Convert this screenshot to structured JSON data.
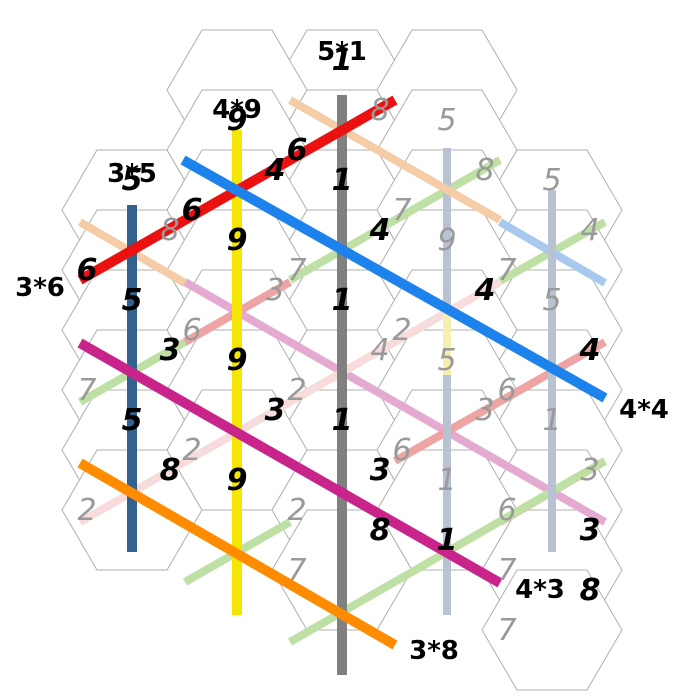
{
  "puzzle": {
    "cells": [
      {
        "id": "r0c0",
        "row": 0,
        "col": 0,
        "pieces": [
          {
            "value": "1",
            "strong": true,
            "color": "#000000"
          }
        ]
      },
      {
        "id": "r1c0",
        "row": 1,
        "col": 0,
        "pieces": [
          {
            "value": "9",
            "strong": true,
            "color": "#000000"
          }
        ]
      },
      {
        "id": "r1c1",
        "row": 1,
        "col": 1,
        "pieces": [
          {
            "value": "6",
            "strong": true,
            "color": "#000000"
          },
          {
            "value": "8",
            "strong": false,
            "color": "#9a9a9a"
          }
        ]
      },
      {
        "id": "r1c2",
        "row": 1,
        "col": 2,
        "pieces": [
          {
            "value": "5",
            "strong": false,
            "color": "#9a9a9a"
          }
        ]
      },
      {
        "id": "r2c0",
        "row": 2,
        "col": 0,
        "pieces": [
          {
            "value": "5",
            "strong": true,
            "color": "#000000"
          }
        ]
      },
      {
        "id": "r2c1",
        "row": 2,
        "col": 1,
        "pieces": [
          {
            "value": "6",
            "strong": true,
            "color": "#000000"
          },
          {
            "value": "4",
            "strong": true,
            "color": "#000000"
          }
        ]
      },
      {
        "id": "r2c2",
        "row": 2,
        "col": 2,
        "pieces": [
          {
            "value": "1",
            "strong": true,
            "color": "#000000"
          }
        ]
      },
      {
        "id": "r2c3",
        "row": 2,
        "col": 3,
        "pieces": [
          {
            "value": "7",
            "strong": false,
            "color": "#9a9a9a"
          },
          {
            "value": "8",
            "strong": false,
            "color": "#9a9a9a"
          }
        ]
      },
      {
        "id": "r2c4",
        "row": 2,
        "col": 4,
        "pieces": [
          {
            "value": "5",
            "strong": false,
            "color": "#9a9a9a"
          }
        ]
      },
      {
        "id": "r3c0",
        "row": 3,
        "col": 0,
        "pieces": [
          {
            "value": "6",
            "strong": true,
            "color": "#000000"
          },
          {
            "value": "8",
            "strong": false,
            "color": "#9a9a9a"
          }
        ]
      },
      {
        "id": "r3c1",
        "row": 3,
        "col": 1,
        "pieces": [
          {
            "value": "9",
            "strong": true,
            "color": "#000000"
          }
        ]
      },
      {
        "id": "r3c2",
        "row": 3,
        "col": 2,
        "pieces": [
          {
            "value": "7",
            "strong": false,
            "color": "#9a9a9a"
          },
          {
            "value": "4",
            "strong": true,
            "color": "#000000"
          }
        ]
      },
      {
        "id": "r3c3",
        "row": 3,
        "col": 3,
        "pieces": [
          {
            "value": "9",
            "strong": false,
            "color": "#9a9a9a"
          }
        ]
      },
      {
        "id": "r3c4",
        "row": 3,
        "col": 4,
        "pieces": [
          {
            "value": "7",
            "strong": false,
            "color": "#9a9a9a"
          },
          {
            "value": "4",
            "strong": false,
            "color": "#9a9a9a"
          }
        ]
      },
      {
        "id": "r4c0",
        "row": 4,
        "col": 0,
        "pieces": [
          {
            "value": "5",
            "strong": true,
            "color": "#000000"
          }
        ]
      },
      {
        "id": "r4c1",
        "row": 4,
        "col": 1,
        "pieces": [
          {
            "value": "6",
            "strong": false,
            "color": "#9a9a9a"
          },
          {
            "value": "3",
            "strong": false,
            "color": "#9a9a9a"
          }
        ]
      },
      {
        "id": "r4c2",
        "row": 4,
        "col": 2,
        "pieces": [
          {
            "value": "1",
            "strong": true,
            "color": "#000000"
          }
        ]
      },
      {
        "id": "r4c3",
        "row": 4,
        "col": 3,
        "pieces": [
          {
            "value": "2",
            "strong": false,
            "color": "#9a9a9a"
          },
          {
            "value": "4",
            "strong": true,
            "color": "#000000"
          }
        ]
      },
      {
        "id": "r4c4",
        "row": 4,
        "col": 4,
        "pieces": [
          {
            "value": "5",
            "strong": false,
            "color": "#9a9a9a"
          }
        ]
      },
      {
        "id": "r5c0",
        "row": 5,
        "col": 0,
        "pieces": [
          {
            "value": "7",
            "strong": false,
            "color": "#9a9a9a"
          },
          {
            "value": "3",
            "strong": true,
            "color": "#000000"
          }
        ]
      },
      {
        "id": "r5c1",
        "row": 5,
        "col": 1,
        "pieces": [
          {
            "value": "9",
            "strong": true,
            "color": "#000000"
          }
        ]
      },
      {
        "id": "r5c2",
        "row": 5,
        "col": 2,
        "pieces": [
          {
            "value": "2",
            "strong": false,
            "color": "#9a9a9a"
          },
          {
            "value": "4",
            "strong": false,
            "color": "#9a9a9a"
          }
        ]
      },
      {
        "id": "r5c3",
        "row": 5,
        "col": 3,
        "pieces": [
          {
            "value": "5",
            "strong": false,
            "color": "#9a9a9a"
          }
        ]
      },
      {
        "id": "r5c4",
        "row": 5,
        "col": 4,
        "pieces": [
          {
            "value": "6",
            "strong": false,
            "color": "#9a9a9a"
          },
          {
            "value": "4",
            "strong": true,
            "color": "#000000"
          }
        ]
      },
      {
        "id": "r6c0",
        "row": 6,
        "col": 0,
        "pieces": [
          {
            "value": "5",
            "strong": true,
            "color": "#000000"
          }
        ]
      },
      {
        "id": "r6c1",
        "row": 6,
        "col": 1,
        "pieces": [
          {
            "value": "2",
            "strong": false,
            "color": "#9a9a9a"
          },
          {
            "value": "3",
            "strong": true,
            "color": "#000000"
          }
        ]
      },
      {
        "id": "r6c2",
        "row": 6,
        "col": 2,
        "pieces": [
          {
            "value": "1",
            "strong": true,
            "color": "#000000"
          }
        ]
      },
      {
        "id": "r6c3",
        "row": 6,
        "col": 3,
        "pieces": [
          {
            "value": "6",
            "strong": false,
            "color": "#9a9a9a"
          },
          {
            "value": "3",
            "strong": false,
            "color": "#9a9a9a"
          }
        ]
      },
      {
        "id": "r6c4",
        "row": 6,
        "col": 4,
        "pieces": [
          {
            "value": "1",
            "strong": false,
            "color": "#9a9a9a"
          }
        ]
      },
      {
        "id": "r7c0",
        "row": 7,
        "col": 0,
        "pieces": [
          {
            "value": "2",
            "strong": false,
            "color": "#9a9a9a"
          },
          {
            "value": "8",
            "strong": true,
            "color": "#000000"
          }
        ]
      },
      {
        "id": "r7c1",
        "row": 7,
        "col": 1,
        "pieces": [
          {
            "value": "9",
            "strong": true,
            "color": "#000000"
          }
        ]
      },
      {
        "id": "r7c2",
        "row": 7,
        "col": 2,
        "pieces": [
          {
            "value": "2",
            "strong": false,
            "color": "#9a9a9a"
          },
          {
            "value": "3",
            "strong": true,
            "color": "#000000"
          }
        ]
      },
      {
        "id": "r7c3",
        "row": 7,
        "col": 3,
        "pieces": [
          {
            "value": "1",
            "strong": false,
            "color": "#9a9a9a"
          }
        ]
      },
      {
        "id": "r7c4",
        "row": 7,
        "col": 4,
        "pieces": [
          {
            "value": "6",
            "strong": false,
            "color": "#9a9a9a"
          },
          {
            "value": "3",
            "strong": false,
            "color": "#9a9a9a"
          }
        ]
      },
      {
        "id": "r8c1",
        "row": 8,
        "col": 1,
        "pieces": [
          {
            "value": "7",
            "strong": false,
            "color": "#9a9a9a"
          },
          {
            "value": "8",
            "strong": true,
            "color": "#000000"
          }
        ]
      },
      {
        "id": "r8c2",
        "row": 8,
        "col": 2,
        "pieces": [
          {
            "value": "1",
            "strong": true,
            "color": "#000000"
          }
        ]
      },
      {
        "id": "r8c3",
        "row": 8,
        "col": 3,
        "pieces": [
          {
            "value": "7",
            "strong": false,
            "color": "#9a9a9a"
          },
          {
            "value": "3",
            "strong": true,
            "color": "#000000"
          }
        ]
      },
      {
        "id": "r9c2",
        "row": 9,
        "col": 2,
        "pieces": [
          {
            "value": "7",
            "strong": false,
            "color": "#9a9a9a"
          },
          {
            "value": "8",
            "strong": true,
            "color": "#000000"
          }
        ]
      }
    ],
    "lines": [
      {
        "id": "line-5x1",
        "color": "#808080",
        "strong": true
      },
      {
        "id": "line-4x9",
        "color": "#f5e600",
        "strong": true
      },
      {
        "id": "line-3x5",
        "color": "#33628e",
        "strong": true
      },
      {
        "id": "line-3x6",
        "color": "#ec1111",
        "strong": true
      },
      {
        "id": "line-4x4",
        "color": "#1e82ec",
        "strong": true
      },
      {
        "id": "line-4x3",
        "color": "#c8248c",
        "strong": true
      },
      {
        "id": "line-3x8",
        "color": "#ff8c00",
        "strong": true
      },
      {
        "id": "faint-peach-top",
        "color": "#f5cca6",
        "strong": false
      },
      {
        "id": "faint-peach-left",
        "color": "#f5cca6",
        "strong": false
      },
      {
        "id": "faint-blue-1",
        "color": "#b8c2d2",
        "strong": false
      },
      {
        "id": "faint-yellow",
        "color": "#f5f0b0",
        "strong": false
      },
      {
        "id": "faint-blue-3",
        "color": "#b8c2d2",
        "strong": false
      },
      {
        "id": "faint-lightblue",
        "color": "#a8c8f0",
        "strong": false
      },
      {
        "id": "faint-green-top",
        "color": "#bfe0a4",
        "strong": false
      },
      {
        "id": "faint-green-right",
        "color": "#bfe0a4",
        "strong": false
      },
      {
        "id": "faint-green-left",
        "color": "#bfe0a4",
        "strong": false
      },
      {
        "id": "faint-green-bottom1",
        "color": "#bfe0a4",
        "strong": false
      },
      {
        "id": "faint-green-bottom2",
        "color": "#bfe0a4",
        "strong": false
      },
      {
        "id": "faint-pink-1",
        "color": "#eea4a4",
        "strong": false
      },
      {
        "id": "faint-pink-2",
        "color": "#eea4a4",
        "strong": false
      },
      {
        "id": "faint-pink-3",
        "color": "#eea4a4",
        "strong": false
      },
      {
        "id": "faint-pinklight-1",
        "color": "#f8dcdc",
        "strong": false
      },
      {
        "id": "faint-pinklight-2",
        "color": "#f8dcdc",
        "strong": false
      },
      {
        "id": "faint-lavender",
        "color": "#e4aad2",
        "strong": false
      }
    ],
    "clues": [
      {
        "id": "clue-5x1",
        "text": "5*1"
      },
      {
        "id": "clue-4x9",
        "text": "4*9"
      },
      {
        "id": "clue-3x5",
        "text": "3*5"
      },
      {
        "id": "clue-3x6",
        "text": "3*6"
      },
      {
        "id": "clue-4x4",
        "text": "4*4"
      },
      {
        "id": "clue-4x3",
        "text": "4*3"
      },
      {
        "id": "clue-3x8",
        "text": "3*8"
      }
    ]
  }
}
